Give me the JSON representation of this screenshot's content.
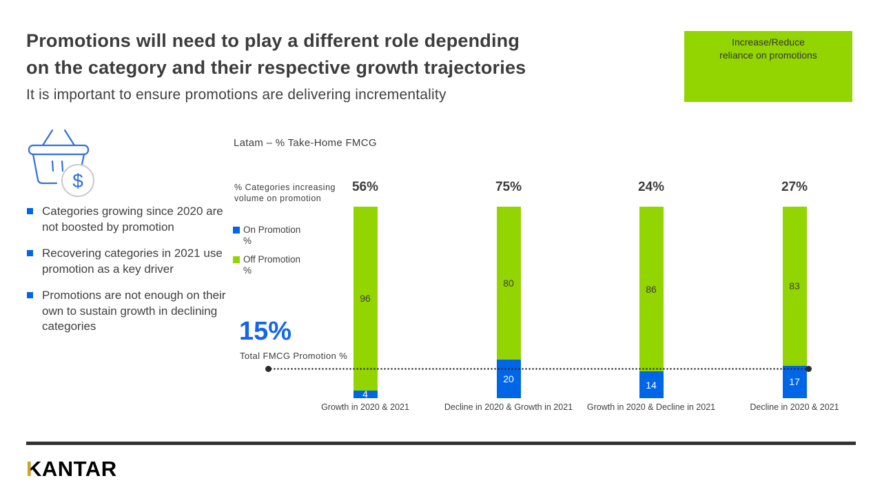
{
  "slide": {
    "title_lines": [
      "Promotions will need to play a different role depending",
      "on the category and their respective growth trajectories"
    ],
    "subtitle": "It is important to ensure promotions are delivering incrementality",
    "callout": "Increase/Reduce reliance on promotions",
    "bullets": [
      "Categories growing since 2020 are not boosted by promotion",
      "Recovering categories in 2021 use promotion as a key driver",
      "Promotions are not enough on their own to sustain growth in declining categories"
    ],
    "logo": {
      "first_letter": "K",
      "rest": "ANTAR"
    },
    "icons": {
      "basket_dollar": "$"
    }
  },
  "chart_data": {
    "type": "bar",
    "stacked": true,
    "title": "Latam – % Take-Home FMCG",
    "axis_note": "% Categories increasing volume on promotion",
    "categories": [
      "Growth in 2020 & 2021",
      "Decline in 2020 & Growth in 2021",
      "Growth in 2020 & Decline in 2021",
      "Decline in 2020 & 2021"
    ],
    "category_pcts": [
      "56%",
      "75%",
      "24%",
      "27%"
    ],
    "series": [
      {
        "name": "On Promotion %",
        "color": "#0066E8",
        "values": [
          4,
          20,
          14,
          17
        ]
      },
      {
        "name": "Off Promotion %",
        "color": "#93D500",
        "values": [
          96,
          80,
          86,
          83
        ]
      }
    ],
    "reference_line": {
      "value": 15,
      "label": "15%",
      "sublabel": "Total FMCG Promotion %"
    },
    "ylim": [
      0,
      100
    ],
    "grid": false,
    "legend_position": "left"
  },
  "colors": {
    "accent_green": "#93D500",
    "accent_blue": "#0066E8",
    "ref_blue_text": "#1565EE",
    "text_dark": "#3f3f3f",
    "footer_rule": "#333333",
    "logo_gold": "#cfa021"
  }
}
